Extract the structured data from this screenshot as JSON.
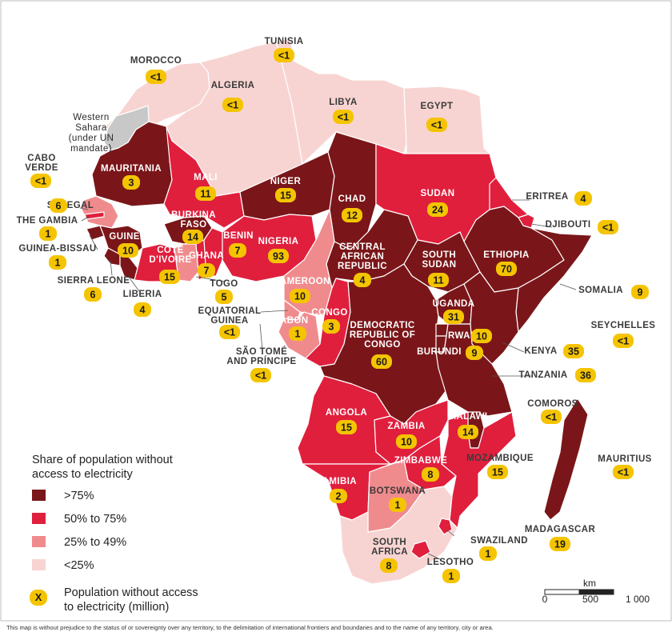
{
  "colors": {
    "gt75": "#7a1619",
    "p50_75": "#e01f3d",
    "p25_49": "#f08b8d",
    "lt25": "#f7d4d2",
    "disputed": "#c8c8c8",
    "badge": "#f5c400"
  },
  "legend": {
    "title_line1": "Share of population without",
    "title_line2": "access to electricity",
    "classes": [
      {
        "key": "gt75",
        "label": ">75%"
      },
      {
        "key": "p50_75",
        "label": "50% to 75%"
      },
      {
        "key": "p25_49",
        "label": "25% to 49%"
      },
      {
        "key": "lt25",
        "label": "<25%"
      }
    ],
    "badge_symbol": "X",
    "badge_line1": "Population without access",
    "badge_line2": "to electricity (million)"
  },
  "scale_bar": {
    "unit": "km",
    "ticks": [
      "0",
      "500",
      "1 000"
    ]
  },
  "disclaimer": "This map is without prejudice to the status of or sovereignty over any territory, to the delimitation of international frontiers and boundaries and to the name of any territory, city or area.",
  "disputed_label": [
    "Western",
    "Sahara",
    "(under UN",
    "mandate)"
  ],
  "countries": [
    {
      "id": "morocco",
      "name": [
        "MOROCCO"
      ],
      "value": "<1",
      "class": "lt25"
    },
    {
      "id": "algeria",
      "name": [
        "ALGERIA"
      ],
      "value": "<1",
      "class": "lt25"
    },
    {
      "id": "tunisia",
      "name": [
        "TUNISIA"
      ],
      "value": "<1",
      "class": "lt25"
    },
    {
      "id": "libya",
      "name": [
        "LIBYA"
      ],
      "value": "<1",
      "class": "lt25"
    },
    {
      "id": "egypt",
      "name": [
        "EGYPT"
      ],
      "value": "<1",
      "class": "lt25"
    },
    {
      "id": "mauritania",
      "name": [
        "MAURITANIA"
      ],
      "value": "3",
      "class": "gt75"
    },
    {
      "id": "mali",
      "name": [
        "MALI"
      ],
      "value": "11",
      "class": "p50_75"
    },
    {
      "id": "niger",
      "name": [
        "NIGER"
      ],
      "value": "15",
      "class": "gt75"
    },
    {
      "id": "chad",
      "name": [
        "CHAD"
      ],
      "value": "12",
      "class": "gt75"
    },
    {
      "id": "sudan",
      "name": [
        "SUDAN"
      ],
      "value": "24",
      "class": "p50_75"
    },
    {
      "id": "eritrea",
      "name": [
        "ERITREA"
      ],
      "value": "4",
      "class": "p50_75"
    },
    {
      "id": "djibouti",
      "name": [
        "DJIBOUTI"
      ],
      "value": "<1",
      "class": "p50_75"
    },
    {
      "id": "ethiopia",
      "name": [
        "ETHIOPIA"
      ],
      "value": "70",
      "class": "gt75"
    },
    {
      "id": "somalia",
      "name": [
        "SOMALIA"
      ],
      "value": "9",
      "class": "gt75"
    },
    {
      "id": "cabo_verde",
      "name": [
        "CABO",
        "VERDE"
      ],
      "value": "<1",
      "class": "lt25"
    },
    {
      "id": "senegal",
      "name": [
        "SENEGAL"
      ],
      "value": "6",
      "class": "p25_49"
    },
    {
      "id": "the_gambia",
      "name": [
        "THE GAMBIA"
      ],
      "value": "1",
      "class": "p50_75"
    },
    {
      "id": "guinea_bissau",
      "name": [
        "GUINEA-BISSAU"
      ],
      "value": "1",
      "class": "gt75"
    },
    {
      "id": "guinea",
      "name": [
        "GUINEA"
      ],
      "value": "10",
      "class": "gt75"
    },
    {
      "id": "sierra_leone",
      "name": [
        "SIERRA LEONE"
      ],
      "value": "6",
      "class": "gt75"
    },
    {
      "id": "liberia",
      "name": [
        "LIBERIA"
      ],
      "value": "4",
      "class": "gt75"
    },
    {
      "id": "cote_divoire",
      "name": [
        "CÔTE",
        "D'IVOIRE"
      ],
      "value": "15",
      "class": "p50_75"
    },
    {
      "id": "burkina_faso",
      "name": [
        "BURKINA",
        "FASO"
      ],
      "value": "14",
      "class": "gt75"
    },
    {
      "id": "ghana",
      "name": [
        "GHANA"
      ],
      "value": "7",
      "class": "p25_49"
    },
    {
      "id": "togo",
      "name": [
        "TOGO"
      ],
      "value": "5",
      "class": "p50_75"
    },
    {
      "id": "benin",
      "name": [
        "BENIN"
      ],
      "value": "7",
      "class": "p50_75"
    },
    {
      "id": "nigeria",
      "name": [
        "NIGERIA"
      ],
      "value": "93",
      "class": "p50_75"
    },
    {
      "id": "cameroon",
      "name": [
        "CAMEROON"
      ],
      "value": "10",
      "class": "p25_49"
    },
    {
      "id": "car",
      "name": [
        "CENTRAL",
        "AFRICAN",
        "REPUBLIC"
      ],
      "value": "4",
      "class": "gt75"
    },
    {
      "id": "south_sudan",
      "name": [
        "SOUTH",
        "SUDAN"
      ],
      "value": "11",
      "class": "gt75"
    },
    {
      "id": "equatorial_guinea",
      "name": [
        "EQUATORIAL",
        "GUINEA"
      ],
      "value": "<1",
      "class": "p25_49"
    },
    {
      "id": "gabon",
      "name": [
        "GABON"
      ],
      "value": "1",
      "class": "p25_49"
    },
    {
      "id": "sao_tome",
      "name": [
        "SÃO TOMÉ",
        "AND PRÍNCIPE"
      ],
      "value": "<1",
      "class": "p25_49"
    },
    {
      "id": "congo",
      "name": [
        "CONGO"
      ],
      "value": "3",
      "class": "p50_75"
    },
    {
      "id": "drc",
      "name": [
        "DEMOCRATIC",
        "REPUBLIC OF",
        "CONGO"
      ],
      "value": "60",
      "class": "gt75"
    },
    {
      "id": "uganda",
      "name": [
        "UGANDA"
      ],
      "value": "31",
      "class": "gt75"
    },
    {
      "id": "rwanda",
      "name": [
        "RWANDA"
      ],
      "value": "10",
      "class": "gt75"
    },
    {
      "id": "burundi",
      "name": [
        "BURUNDI"
      ],
      "value": "9",
      "class": "gt75"
    },
    {
      "id": "kenya",
      "name": [
        "KENYA"
      ],
      "value": "35",
      "class": "gt75"
    },
    {
      "id": "seychelles",
      "name": [
        "SEYCHELLES"
      ],
      "value": "<1",
      "class": "lt25"
    },
    {
      "id": "tanzania",
      "name": [
        "TANZANIA"
      ],
      "value": "36",
      "class": "gt75"
    },
    {
      "id": "comoros",
      "name": [
        "COMOROS"
      ],
      "value": "<1",
      "class": "p25_49"
    },
    {
      "id": "angola",
      "name": [
        "ANGOLA"
      ],
      "value": "15",
      "class": "p50_75"
    },
    {
      "id": "zambia",
      "name": [
        "ZAMBIA"
      ],
      "value": "10",
      "class": "p50_75"
    },
    {
      "id": "malawi",
      "name": [
        "MALAWI"
      ],
      "value": "14",
      "class": "gt75"
    },
    {
      "id": "mozambique",
      "name": [
        "MOZAMBIQUE"
      ],
      "value": "15",
      "class": "p50_75"
    },
    {
      "id": "mauritius",
      "name": [
        "MAURITIUS"
      ],
      "value": "<1",
      "class": "lt25"
    },
    {
      "id": "zimbabwe",
      "name": [
        "ZIMBABWE"
      ],
      "value": "8",
      "class": "p50_75"
    },
    {
      "id": "namibia",
      "name": [
        "NAMIBIA"
      ],
      "value": "2",
      "class": "p50_75"
    },
    {
      "id": "botswana",
      "name": [
        "BOTSWANA"
      ],
      "value": "1",
      "class": "p25_49"
    },
    {
      "id": "madagascar",
      "name": [
        "MADAGASCAR"
      ],
      "value": "19",
      "class": "gt75"
    },
    {
      "id": "swaziland",
      "name": [
        "SWAZILAND"
      ],
      "value": "1",
      "class": "p50_75"
    },
    {
      "id": "south_africa",
      "name": [
        "SOUTH",
        "AFRICA"
      ],
      "value": "8",
      "class": "lt25"
    },
    {
      "id": "lesotho",
      "name": [
        "LESOTHO"
      ],
      "value": "1",
      "class": "p50_75"
    }
  ]
}
